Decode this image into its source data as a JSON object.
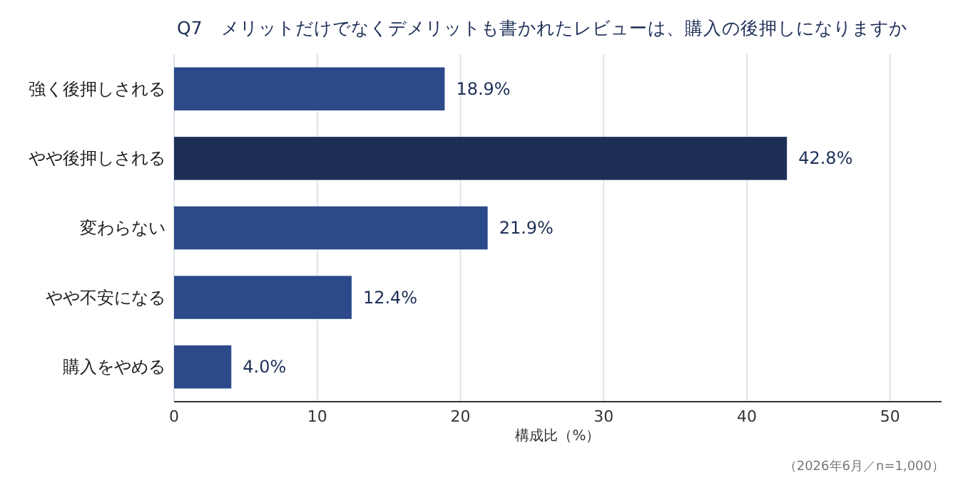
{
  "chart_data": {
    "type": "bar",
    "orientation": "horizontal",
    "title": "Q7　メリットだけでなくデメリットも書かれたレビューは、購入の後押しになりますか",
    "categories": [
      "強く後押しされる",
      "やや後押しされる",
      "変わらない",
      "やや不安になる",
      "購入をやめる"
    ],
    "values": [
      18.9,
      42.8,
      21.9,
      12.4,
      4.0
    ],
    "value_labels": [
      "18.9%",
      "42.8%",
      "21.9%",
      "12.4%",
      "4.0%"
    ],
    "colors": [
      "#2c4a8a",
      "#1d2f57",
      "#2c4a8a",
      "#2c4a8a",
      "#2c4a8a"
    ],
    "xlim": [
      0,
      53.6
    ],
    "xticks": [
      0,
      10,
      20,
      30,
      40,
      50
    ],
    "xlabel": "構成比（%）",
    "grid": "x",
    "annotations": [
      "（2026年6月／n=1,000）"
    ]
  }
}
